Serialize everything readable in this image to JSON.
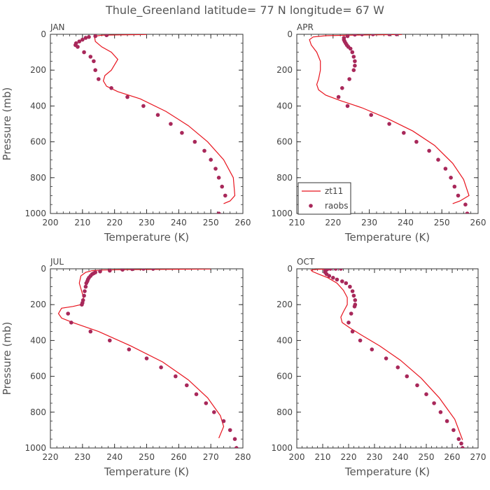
{
  "title": "Thule_Greenland  latitude= 77 N longitude= 67 W",
  "colors": {
    "model": "#e8141e",
    "obs": "#a8285a",
    "axis": "#333333"
  },
  "chart_data": [
    {
      "type": "scatter",
      "month": "JAN",
      "xlabel": "Temperature (K)",
      "ylabel": "Pressure (mb)",
      "xlim": [
        200,
        260
      ],
      "ylim": [
        1000,
        0
      ],
      "xticks": [
        200,
        210,
        220,
        230,
        240,
        250,
        260
      ],
      "yticks": [
        0,
        200,
        400,
        600,
        800,
        1000
      ],
      "legend": false,
      "series": [
        {
          "name": "zt11",
          "kind": "line",
          "x": [
            230,
            222,
            216,
            214,
            213.8,
            214,
            216,
            219,
            221,
            219,
            217,
            216.5,
            217.5,
            221,
            228,
            236,
            243,
            249,
            254,
            257,
            257.5,
            256,
            254
          ],
          "y": [
            1,
            3,
            5,
            10,
            20,
            40,
            70,
            100,
            140,
            200,
            230,
            260,
            290,
            320,
            360,
            430,
            510,
            600,
            700,
            800,
            900,
            930,
            945
          ]
        },
        {
          "name": "raobs",
          "kind": "scatter",
          "x": [
            217.5,
            214,
            212,
            211,
            210,
            209,
            208,
            207.8,
            208.5,
            210.5,
            212.5,
            213.5,
            214,
            215,
            219,
            224,
            229,
            233.5,
            237.5,
            241,
            245,
            248,
            250,
            251.5,
            252.5,
            253.5,
            254.5,
            252.5
          ],
          "y": [
            5,
            10,
            15,
            20,
            30,
            40,
            50,
            60,
            70,
            100,
            125,
            150,
            200,
            250,
            300,
            350,
            400,
            450,
            500,
            550,
            600,
            650,
            700,
            750,
            800,
            850,
            900,
            1000
          ]
        }
      ]
    },
    {
      "type": "scatter",
      "month": "APR",
      "xlabel": "Temperature (K)",
      "ylabel": "",
      "xlim": [
        210,
        260
      ],
      "ylim": [
        1000,
        0
      ],
      "xticks": [
        210,
        220,
        230,
        240,
        250,
        260
      ],
      "yticks": [
        0,
        200,
        400,
        600,
        800,
        1000
      ],
      "legend": true,
      "legend_position": "lower-left",
      "series": [
        {
          "name": "zt11",
          "kind": "line",
          "x": [
            239,
            232,
            224,
            218,
            214.5,
            213.5,
            214,
            215.5,
            216.5,
            216.5,
            216,
            215.5,
            216,
            218,
            222,
            228,
            235,
            242,
            248,
            253,
            256,
            257.5,
            255,
            253
          ],
          "y": [
            1,
            3,
            5,
            8,
            15,
            30,
            60,
            100,
            150,
            200,
            250,
            280,
            310,
            340,
            370,
            410,
            470,
            540,
            620,
            720,
            810,
            900,
            930,
            945
          ]
        },
        {
          "name": "raobs",
          "kind": "scatter",
          "x": [
            237.5,
            235.5,
            231,
            228,
            226,
            224,
            223,
            223,
            223.2,
            223.5,
            223.8,
            224.2,
            224.8,
            225.3,
            225.7,
            226,
            226,
            225.7,
            224.5,
            222.5,
            221.5,
            224,
            230.5,
            235.5,
            239.5,
            243,
            246.5,
            249,
            251,
            252.5,
            253.5,
            254.5,
            256.5,
            257
          ],
          "y": [
            0,
            0,
            0,
            0,
            2,
            10,
            20,
            30,
            40,
            50,
            60,
            70,
            80,
            100,
            125,
            150,
            175,
            200,
            250,
            300,
            350,
            400,
            450,
            500,
            550,
            600,
            650,
            700,
            750,
            800,
            850,
            900,
            950,
            1000
          ]
        }
      ]
    },
    {
      "type": "scatter",
      "month": "JUL",
      "xlabel": "Temperature (K)",
      "ylabel": "Pressure (mb)",
      "xlim": [
        220,
        280
      ],
      "ylim": [
        1000,
        0
      ],
      "xticks": [
        220,
        230,
        240,
        250,
        260,
        270,
        280
      ],
      "yticks": [
        0,
        200,
        400,
        600,
        800,
        1000
      ],
      "legend": false,
      "series": [
        {
          "name": "zt11",
          "kind": "line",
          "x": [
            270,
            255,
            242,
            236,
            233,
            231,
            229.5,
            229,
            230,
            230.5,
            229.5,
            227,
            223.5,
            222.5,
            223.5,
            227,
            235,
            245,
            255,
            263,
            269,
            273,
            274,
            272.5
          ],
          "y": [
            1,
            3,
            5,
            7,
            10,
            20,
            40,
            80,
            140,
            180,
            200,
            210,
            220,
            250,
            275,
            300,
            350,
            430,
            520,
            620,
            720,
            820,
            880,
            945
          ]
        },
        {
          "name": "raobs",
          "kind": "scatter",
          "x": [
            252,
            249,
            245.5,
            242.5,
            238.5,
            235.5,
            234,
            233.5,
            233,
            232.5,
            232,
            231.7,
            231.5,
            231.2,
            231,
            230.7,
            230.5,
            230.2,
            230,
            229.8,
            225.5,
            226.5,
            232.5,
            238.5,
            244.5,
            250,
            254.5,
            259,
            262.5,
            265.5,
            268.5,
            271,
            274,
            276,
            277.5,
            278
          ],
          "y": [
            0,
            0,
            2,
            5,
            10,
            15,
            20,
            25,
            30,
            40,
            50,
            60,
            70,
            80,
            100,
            125,
            150,
            175,
            190,
            200,
            250,
            300,
            350,
            400,
            450,
            500,
            550,
            600,
            650,
            700,
            750,
            800,
            850,
            900,
            950,
            1000
          ]
        }
      ]
    },
    {
      "type": "scatter",
      "month": "OCT",
      "xlabel": "Temperature (K)",
      "ylabel": "",
      "xlim": [
        200,
        270
      ],
      "ylim": [
        1000,
        0
      ],
      "xticks": [
        200,
        210,
        220,
        230,
        240,
        250,
        260,
        270
      ],
      "yticks": [
        0,
        200,
        400,
        600,
        800,
        1000
      ],
      "legend": false,
      "series": [
        {
          "name": "zt11",
          "kind": "line",
          "x": [
            212,
            208,
            205.5,
            206,
            208.5,
            212,
            215.5,
            218,
            219.5,
            219.5,
            218,
            217,
            217.5,
            220.5,
            225,
            232,
            240,
            248,
            255,
            261,
            264
          ],
          "y": [
            1,
            3,
            7,
            15,
            30,
            50,
            80,
            120,
            160,
            200,
            240,
            270,
            300,
            330,
            370,
            430,
            510,
            610,
            720,
            840,
            955
          ]
        },
        {
          "name": "raobs",
          "kind": "scatter",
          "x": [
            217,
            215,
            213,
            212,
            211.5,
            211,
            211,
            211.5,
            212.5,
            214,
            215.5,
            217.5,
            219,
            220.5,
            221.5,
            222,
            222.5,
            222.5,
            222.3,
            221,
            220,
            221.5,
            224.5,
            229,
            234.5,
            239,
            242.5,
            246.5,
            250,
            253,
            255.5,
            258,
            260.5,
            262.5,
            263.5,
            264
          ],
          "y": [
            0,
            0,
            0,
            0,
            5,
            10,
            20,
            30,
            40,
            50,
            60,
            70,
            80,
            100,
            125,
            150,
            175,
            200,
            210,
            250,
            300,
            350,
            400,
            450,
            500,
            550,
            600,
            650,
            700,
            750,
            800,
            850,
            900,
            950,
            975,
            1000
          ]
        }
      ]
    }
  ]
}
